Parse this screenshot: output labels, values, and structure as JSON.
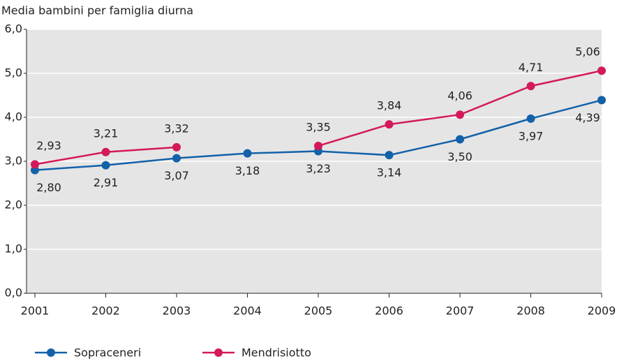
{
  "chart_data": {
    "type": "line",
    "y_label": "Media bambini per famiglia diurna",
    "categories": [
      "2001",
      "2002",
      "2003",
      "2004",
      "2005",
      "2006",
      "2007",
      "2008",
      "2009"
    ],
    "series": [
      {
        "name": "Sopraceneri",
        "color": "#1361a9",
        "values": [
          2.8,
          2.91,
          3.07,
          3.18,
          3.23,
          3.14,
          3.5,
          3.97,
          4.39
        ],
        "value_labels": [
          "2,80",
          "2,91",
          "3,07",
          "3,18",
          "3,23",
          "3,14",
          "3,50",
          "3,97",
          "4,39"
        ]
      },
      {
        "name": "Mendrisiotto",
        "color": "#d3195b",
        "values": [
          2.93,
          3.21,
          3.32,
          null,
          3.35,
          3.84,
          4.06,
          4.71,
          5.06
        ],
        "value_labels": [
          "2,93",
          "3,21",
          "3,32",
          null,
          "3,35",
          "3,84",
          "4,06",
          "4,71",
          "5,06"
        ]
      }
    ],
    "ylim": [
      0,
      6
    ],
    "yticks": [
      {
        "value": 0,
        "label": "0,0"
      },
      {
        "value": 1,
        "label": "1,0"
      },
      {
        "value": 2,
        "label": "2,0"
      },
      {
        "value": 3,
        "label": "3,0"
      },
      {
        "value": 4,
        "label": "4,0"
      },
      {
        "value": 5,
        "label": "5,0"
      },
      {
        "value": 6,
        "label": "6,0"
      }
    ],
    "grid": true
  }
}
